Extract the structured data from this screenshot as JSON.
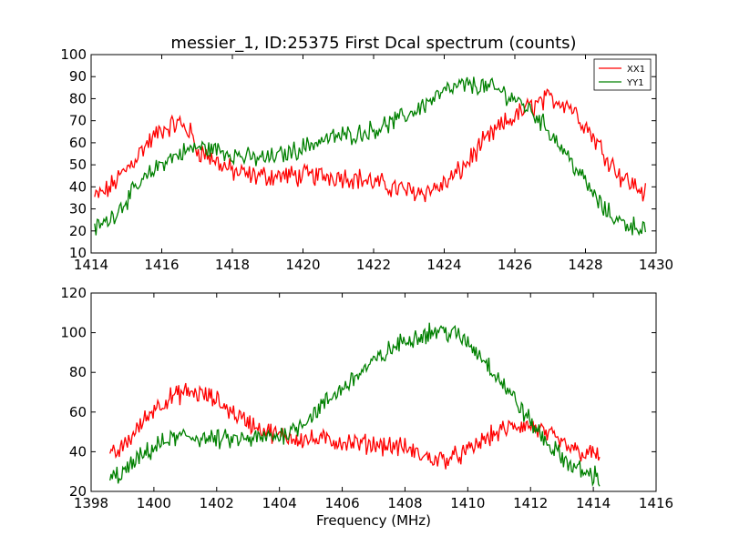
{
  "title": "messier_1, ID:25375 First Dcal spectrum (counts)",
  "chart_data": [
    {
      "type": "line",
      "title": "messier_1, ID:25375 First Dcal spectrum (counts)",
      "xlabel": "",
      "ylabel": "",
      "xlim": [
        1414,
        1430
      ],
      "ylim": [
        10,
        100
      ],
      "xticks": [
        1414,
        1416,
        1418,
        1420,
        1422,
        1424,
        1426,
        1428,
        1430
      ],
      "yticks": [
        10,
        20,
        30,
        40,
        50,
        60,
        70,
        80,
        90,
        100
      ],
      "x_range": [
        1414.1,
        1429.7
      ],
      "legend": {
        "placement": "top-right",
        "entries": [
          "XX1",
          "YY1"
        ]
      },
      "grid": false,
      "series": [
        {
          "name": "XX1",
          "color": "#ff0000",
          "noise": 4,
          "x": [
            1414.1,
            1414.5,
            1415.0,
            1415.5,
            1416.0,
            1416.5,
            1416.8,
            1417.0,
            1417.5,
            1418.0,
            1418.5,
            1419.0,
            1419.5,
            1420.0,
            1420.5,
            1421.0,
            1421.5,
            1422.0,
            1422.5,
            1423.0,
            1423.5,
            1424.0,
            1424.5,
            1425.0,
            1425.5,
            1426.0,
            1426.5,
            1427.0,
            1427.5,
            1428.0,
            1428.5,
            1429.0,
            1429.7
          ],
          "values": [
            35,
            39,
            48,
            58,
            66,
            69,
            65,
            57,
            52,
            47,
            45,
            45,
            45,
            45,
            45,
            45,
            44,
            42,
            40,
            38,
            38,
            41,
            48,
            58,
            66,
            72,
            77,
            80,
            78,
            68,
            56,
            45,
            37
          ]
        },
        {
          "name": "YY1",
          "color": "#008000",
          "noise": 3.5,
          "x": [
            1414.1,
            1414.5,
            1415.0,
            1415.5,
            1416.0,
            1416.5,
            1417.0,
            1417.5,
            1418.0,
            1418.5,
            1419.0,
            1419.5,
            1420.0,
            1420.5,
            1421.0,
            1421.5,
            1422.0,
            1422.5,
            1423.0,
            1423.5,
            1424.0,
            1424.5,
            1425.0,
            1425.5,
            1426.0,
            1426.5,
            1427.0,
            1427.5,
            1428.0,
            1428.5,
            1429.0,
            1429.7
          ],
          "values": [
            21,
            25,
            34,
            43,
            51,
            55,
            58,
            57,
            55,
            53,
            53,
            55,
            58,
            61,
            63,
            64,
            66,
            69,
            73,
            78,
            83,
            86,
            86,
            84,
            80,
            74,
            65,
            54,
            42,
            30,
            24,
            21
          ]
        }
      ]
    },
    {
      "type": "line",
      "title": "",
      "xlabel": "Frequency (MHz)",
      "ylabel": "",
      "xlim": [
        1398,
        1416
      ],
      "ylim": [
        20,
        120
      ],
      "xticks": [
        1398,
        1400,
        1402,
        1404,
        1406,
        1408,
        1410,
        1412,
        1414,
        1416
      ],
      "yticks": [
        20,
        40,
        60,
        80,
        100,
        120
      ],
      "x_range": [
        1398.6,
        1414.2
      ],
      "grid": false,
      "series": [
        {
          "color": "#ff0000",
          "noise": 4,
          "x": [
            1398.6,
            1399.0,
            1399.5,
            1400.0,
            1400.5,
            1401.0,
            1401.5,
            1402.0,
            1402.5,
            1403.0,
            1403.5,
            1404.0,
            1404.5,
            1405.0,
            1405.5,
            1406.0,
            1406.5,
            1407.0,
            1407.5,
            1408.0,
            1408.5,
            1409.0,
            1409.5,
            1410.0,
            1410.5,
            1411.0,
            1411.5,
            1412.0,
            1412.5,
            1413.0,
            1413.5,
            1414.2
          ],
          "values": [
            37,
            42,
            52,
            62,
            67,
            70,
            69,
            66,
            60,
            55,
            51,
            48,
            47,
            46,
            46,
            45,
            44,
            44,
            43,
            42,
            38,
            36,
            37,
            40,
            46,
            50,
            53,
            53,
            49,
            44,
            40,
            38
          ]
        },
        {
          "color": "#008000",
          "noise": 4,
          "x": [
            1398.6,
            1399.0,
            1399.5,
            1400.0,
            1400.5,
            1401.0,
            1401.5,
            1402.0,
            1402.5,
            1403.0,
            1403.5,
            1404.0,
            1404.5,
            1405.0,
            1405.5,
            1406.0,
            1406.5,
            1407.0,
            1407.5,
            1408.0,
            1408.5,
            1409.0,
            1409.5,
            1410.0,
            1410.5,
            1411.0,
            1411.5,
            1412.0,
            1412.5,
            1413.0,
            1413.5,
            1414.2
          ],
          "values": [
            26,
            29,
            36,
            42,
            46,
            48,
            47,
            46,
            46,
            46,
            47,
            48,
            52,
            58,
            65,
            72,
            79,
            85,
            91,
            96,
            99,
            101,
            100,
            95,
            87,
            77,
            66,
            55,
            45,
            37,
            31,
            27
          ]
        }
      ]
    }
  ]
}
